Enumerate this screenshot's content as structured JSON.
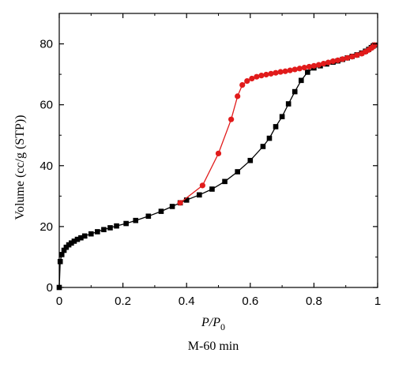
{
  "chart_data": {
    "type": "line",
    "xlabel": "P/P0",
    "xlabel_main": "P/P",
    "xlabel_sub": "0",
    "ylabel": "Volume (cc/g (STP))",
    "caption": "M-60 min",
    "xlim": [
      0,
      1
    ],
    "ylim": [
      0,
      90
    ],
    "x_ticks": [
      0,
      0.2,
      0.4,
      0.6,
      0.8,
      1
    ],
    "x_tick_labels": [
      "0",
      "0.2",
      "0.4",
      "0.6",
      "0.8",
      "1"
    ],
    "y_ticks": [
      0,
      20,
      40,
      60,
      80
    ],
    "y_tick_labels": [
      "0",
      "20",
      "40",
      "60",
      "80"
    ],
    "grid": false,
    "legend": "none",
    "series": [
      {
        "marker": "square",
        "color": "#000000",
        "points": [
          [
            0.0,
            0.0
          ],
          [
            0.003,
            8.5
          ],
          [
            0.008,
            10.8
          ],
          [
            0.015,
            12.2
          ],
          [
            0.022,
            13.2
          ],
          [
            0.03,
            14.0
          ],
          [
            0.038,
            14.6
          ],
          [
            0.047,
            15.2
          ],
          [
            0.057,
            15.8
          ],
          [
            0.068,
            16.3
          ],
          [
            0.08,
            16.9
          ],
          [
            0.1,
            17.6
          ],
          [
            0.12,
            18.3
          ],
          [
            0.14,
            19.0
          ],
          [
            0.16,
            19.6
          ],
          [
            0.18,
            20.2
          ],
          [
            0.21,
            21.0
          ],
          [
            0.24,
            22.0
          ],
          [
            0.28,
            23.4
          ],
          [
            0.32,
            25.0
          ],
          [
            0.355,
            26.6
          ],
          [
            0.38,
            27.8
          ],
          [
            0.4,
            28.7
          ],
          [
            0.44,
            30.4
          ],
          [
            0.48,
            32.3
          ],
          [
            0.52,
            34.8
          ],
          [
            0.56,
            38.0
          ],
          [
            0.6,
            41.7
          ],
          [
            0.64,
            46.3
          ],
          [
            0.66,
            49.0
          ],
          [
            0.68,
            52.8
          ],
          [
            0.7,
            56.1
          ],
          [
            0.72,
            60.3
          ],
          [
            0.74,
            64.3
          ],
          [
            0.76,
            68.0
          ],
          [
            0.78,
            70.7
          ],
          [
            0.8,
            72.1
          ],
          [
            0.82,
            72.8
          ],
          [
            0.84,
            73.4
          ],
          [
            0.86,
            74.0
          ],
          [
            0.875,
            74.4
          ],
          [
            0.89,
            74.9
          ],
          [
            0.905,
            75.4
          ],
          [
            0.92,
            75.9
          ],
          [
            0.935,
            76.4
          ],
          [
            0.95,
            77.0
          ],
          [
            0.962,
            77.6
          ],
          [
            0.972,
            78.2
          ],
          [
            0.98,
            78.8
          ],
          [
            0.986,
            79.3
          ],
          [
            0.99,
            79.6
          ]
        ]
      },
      {
        "marker": "circle",
        "color": "#e11b1b",
        "points": [
          [
            0.38,
            27.8
          ],
          [
            0.45,
            33.5
          ],
          [
            0.5,
            44.0
          ],
          [
            0.54,
            55.2
          ],
          [
            0.56,
            62.8
          ],
          [
            0.575,
            66.5
          ],
          [
            0.59,
            67.8
          ],
          [
            0.605,
            68.6
          ],
          [
            0.62,
            69.2
          ],
          [
            0.635,
            69.6
          ],
          [
            0.65,
            69.9
          ],
          [
            0.665,
            70.2
          ],
          [
            0.68,
            70.5
          ],
          [
            0.695,
            70.8
          ],
          [
            0.71,
            71.0
          ],
          [
            0.725,
            71.3
          ],
          [
            0.74,
            71.6
          ],
          [
            0.755,
            71.9
          ],
          [
            0.77,
            72.2
          ],
          [
            0.785,
            72.5
          ],
          [
            0.8,
            72.8
          ],
          [
            0.815,
            73.1
          ],
          [
            0.83,
            73.5
          ],
          [
            0.845,
            73.9
          ],
          [
            0.86,
            74.3
          ],
          [
            0.875,
            74.6
          ],
          [
            0.89,
            75.0
          ],
          [
            0.905,
            75.4
          ],
          [
            0.92,
            75.8
          ],
          [
            0.935,
            76.3
          ],
          [
            0.95,
            76.8
          ],
          [
            0.962,
            77.4
          ],
          [
            0.972,
            78.0
          ],
          [
            0.98,
            78.6
          ],
          [
            0.986,
            79.1
          ],
          [
            0.99,
            79.6
          ]
        ]
      }
    ]
  }
}
